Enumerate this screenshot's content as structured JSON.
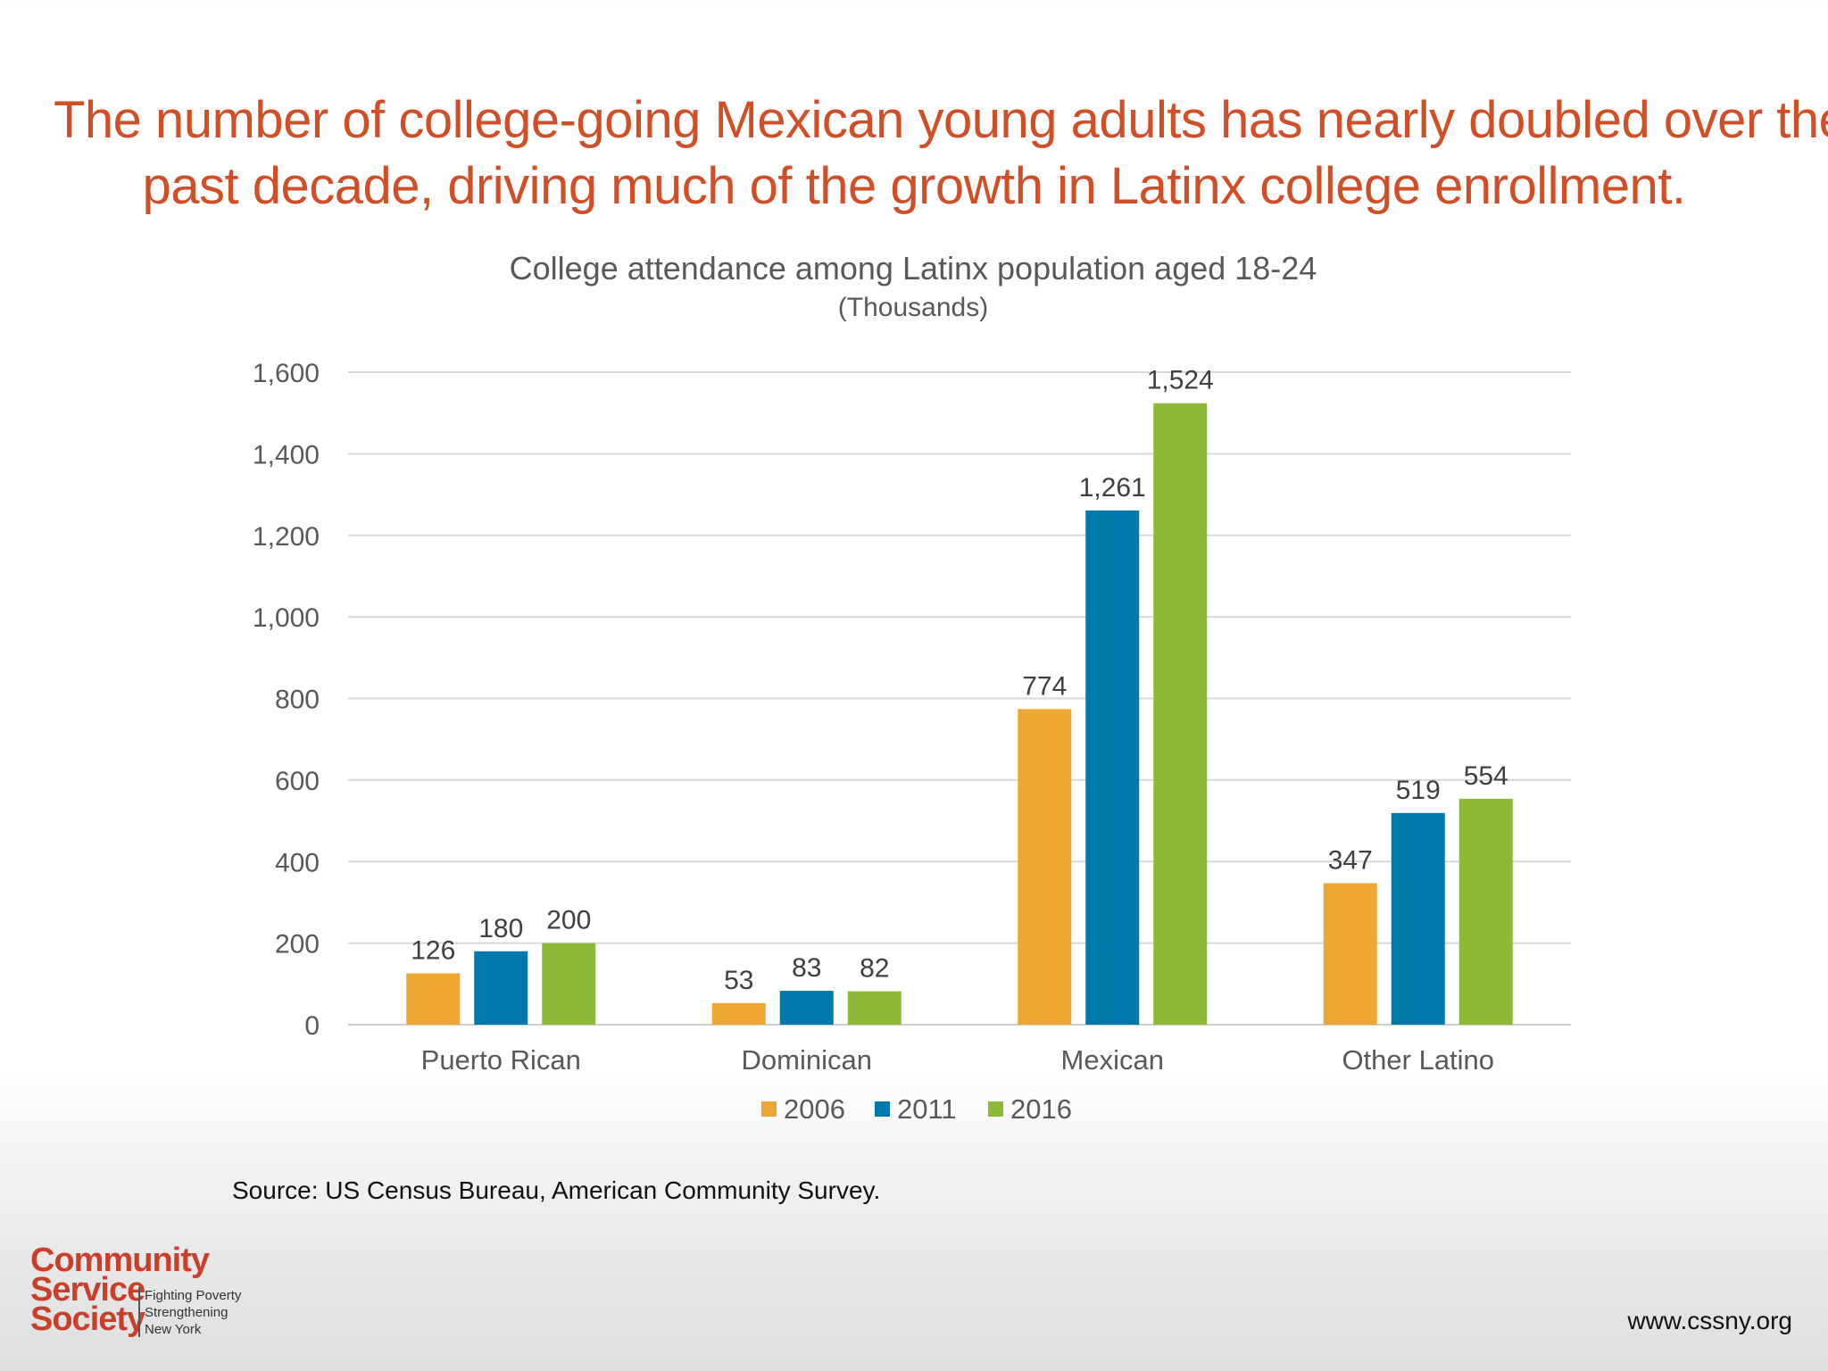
{
  "headline": {
    "line1": "The number of college-going Mexican young adults has nearly doubled over the",
    "line2": "past decade, driving much of the growth in Latinx college enrollment."
  },
  "chart_data": {
    "type": "bar",
    "title": "College attendance among Latinx population aged 18-24",
    "subtitle": "(Thousands)",
    "categories": [
      "Puerto Rican",
      "Dominican",
      "Mexican",
      "Other Latino"
    ],
    "series": [
      {
        "name": "2006",
        "color": "#EDA834",
        "values": [
          126,
          53,
          774,
          347
        ],
        "labels": [
          "126",
          "53",
          "774",
          "347"
        ]
      },
      {
        "name": "2011",
        "color": "#0079AB",
        "values": [
          180,
          83,
          1261,
          519
        ],
        "labels": [
          "180",
          "83",
          "1,261",
          "519"
        ]
      },
      {
        "name": "2016",
        "color": "#8DBB37",
        "values": [
          200,
          82,
          1524,
          554
        ],
        "labels": [
          "200",
          "82",
          "1,524",
          "554"
        ]
      }
    ],
    "ylim": [
      0,
      1600
    ],
    "yticks": [
      0,
      200,
      400,
      600,
      800,
      1000,
      1200,
      1400,
      1600
    ],
    "ytick_labels": [
      "0",
      "200",
      "400",
      "600",
      "800",
      "1,000",
      "1,200",
      "1,400",
      "1,600"
    ],
    "grid": true,
    "legend_position": "bottom",
    "xlabel": "",
    "ylabel": ""
  },
  "source": "Source: US Census Bureau, American Community Survey.",
  "logo": {
    "name_lines": [
      "Community",
      "Service",
      "Society"
    ],
    "tagline_lines": [
      "Fighting Poverty",
      "Strengthening",
      "New York"
    ]
  },
  "url": "www.cssny.org",
  "colors": {
    "headline": "#D04F26",
    "logo": "#C9402A"
  }
}
